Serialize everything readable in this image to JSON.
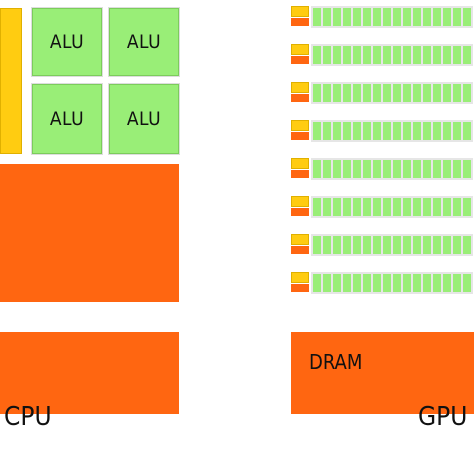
{
  "cpu": {
    "caption": "CPU",
    "alus": [
      "ALU",
      "ALU",
      "ALU",
      "ALU"
    ],
    "dram_label": ""
  },
  "gpu": {
    "caption": "GPU",
    "dram_label": "DRAM",
    "rows": 8,
    "cells_per_row": 16
  },
  "colors": {
    "alu": "#99ee77",
    "control": "#ffcc11",
    "cache_dram": "#ff6611"
  }
}
